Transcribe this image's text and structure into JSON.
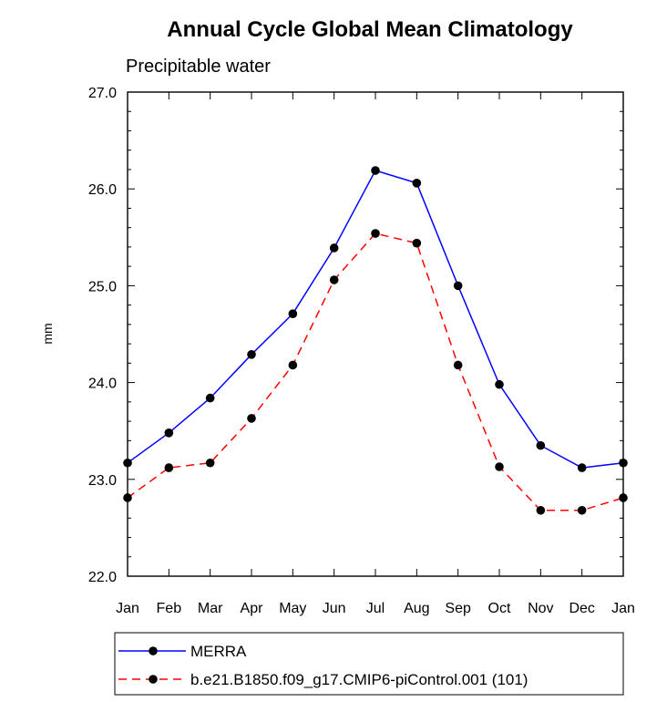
{
  "chart_data": {
    "type": "line",
    "title": "Annual Cycle Global Mean Climatology",
    "subtitle": "Precipitable water",
    "xlabel": "",
    "ylabel": "mm",
    "categories": [
      "Jan",
      "Feb",
      "Mar",
      "Apr",
      "May",
      "Jun",
      "Jul",
      "Aug",
      "Sep",
      "Oct",
      "Nov",
      "Dec",
      "Jan"
    ],
    "ylim": [
      22.0,
      27.0
    ],
    "yticks": [
      "22.0",
      "23.0",
      "24.0",
      "25.0",
      "26.0",
      "27.0"
    ],
    "grid": false,
    "legend_position": "bottom",
    "series": [
      {
        "name": "MERRA",
        "color": "#0000ff",
        "line_style": "solid",
        "marker": "filled-circle",
        "values": [
          23.17,
          23.48,
          23.84,
          24.29,
          24.71,
          25.39,
          26.19,
          26.06,
          25.0,
          23.98,
          23.35,
          23.12,
          23.17
        ]
      },
      {
        "name": "b.e21.B1850.f09_g17.CMIP6-piControl.001 (101)",
        "color": "#ff0000",
        "line_style": "dashed",
        "marker": "filled-circle",
        "values": [
          22.81,
          23.12,
          23.17,
          23.63,
          24.18,
          25.06,
          25.54,
          25.44,
          24.18,
          23.13,
          22.68,
          22.68,
          22.81
        ]
      }
    ]
  }
}
